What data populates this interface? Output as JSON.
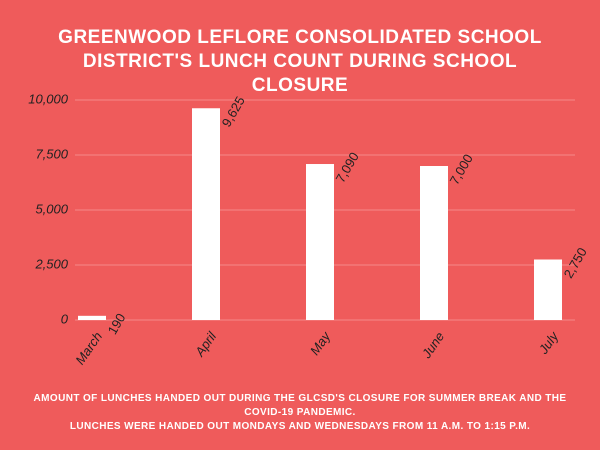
{
  "chart_data": {
    "type": "bar",
    "title": "GREENWOOD LEFLORE CONSOLIDATED SCHOOL DISTRICT'S LUNCH COUNT DURING SCHOOL CLOSURE",
    "categories": [
      "March",
      "April",
      "May",
      "June",
      "July"
    ],
    "values": [
      190,
      9625,
      7090,
      7000,
      2750
    ],
    "value_labels": [
      "190",
      "9,625",
      "7,090",
      "7,000",
      "2,750"
    ],
    "color": "#ffffff",
    "ylim": [
      0,
      10000
    ],
    "yticks": [
      0,
      {
        "value": 2500,
        "label": "2,500"
      },
      {
        "value": 5000,
        "label": "5,000"
      },
      {
        "value": 7500,
        "label": "7,500"
      },
      {
        "value": 10000,
        "label": "10,000"
      }
    ],
    "grid": true,
    "notes": [
      "AMOUNT OF LUNCHES HANDED OUT DURING THE GLCSD'S CLOSURE FOR SUMMER BREAK AND THE COVID-19 PANDEMIC.",
      "LUNCHES WERE HANDED OUT MONDAYS AND WEDNESDAYS FROM 11 A.M. TO 1:15 P.M."
    ]
  }
}
